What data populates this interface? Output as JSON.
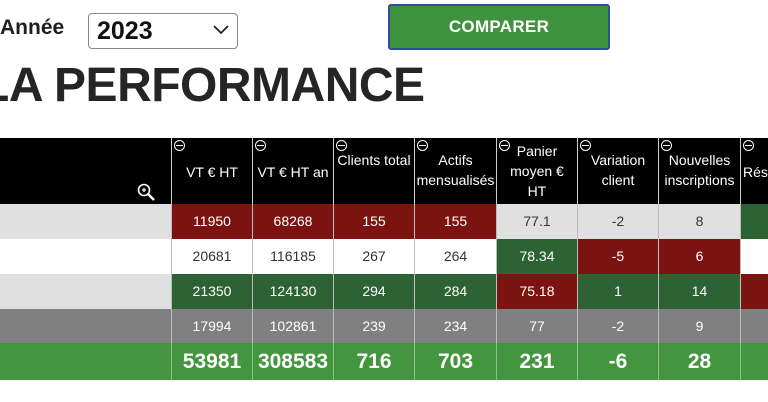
{
  "filter": {
    "year_label": "Année",
    "year_value": "2023"
  },
  "compare_button": "COMPARER",
  "page_title": "LA PERFORMANCE",
  "table": {
    "columns": [
      "VT € HT",
      "VT € HT an",
      "Clients total",
      "Actifs mensualisés",
      "Panier moyen € HT",
      "Variation client",
      "Nouvelles inscriptions",
      "Rés"
    ],
    "rows": [
      {
        "cells": [
          "11950",
          "68268",
          "155",
          "155",
          "77.1",
          "-2",
          "8",
          ""
        ]
      },
      {
        "cells": [
          "20681",
          "116185",
          "267",
          "264",
          "78.34",
          "-5",
          "6",
          ""
        ]
      },
      {
        "cells": [
          "21350",
          "124130",
          "294",
          "284",
          "75.18",
          "1",
          "14",
          ""
        ]
      },
      {
        "cells": [
          "17994",
          "102861",
          "239",
          "234",
          "77",
          "-2",
          "9",
          ""
        ]
      }
    ],
    "totals": [
      "53981",
      "308583",
      "716",
      "703",
      "231",
      "-6",
      "28",
      ""
    ]
  },
  "colors": {
    "header": "#000000",
    "good": "#2d6234",
    "bad": "#7b1410",
    "total": "#43953f",
    "row_light": "#e0e0e0",
    "row_white": "#ffffff",
    "row_dark": "#808080",
    "button_border": "#2b4f9a"
  }
}
